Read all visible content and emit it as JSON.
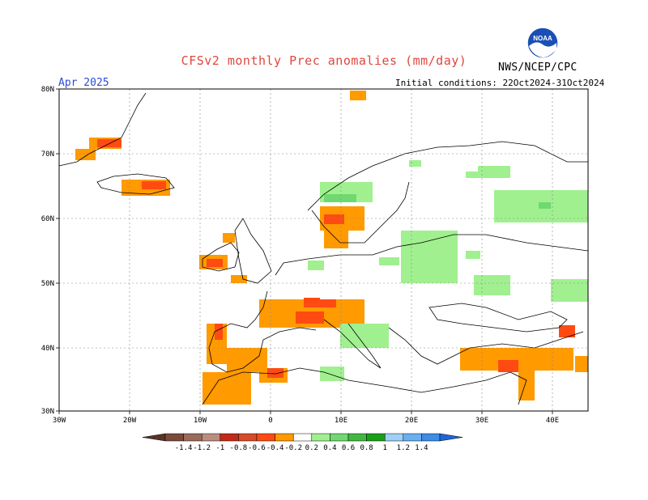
{
  "header": {
    "title": "CFSv2 monthly Prec anomalies (mm/day)",
    "month": "Apr 2025",
    "initial_conditions": "Initial conditions: 22Oct2024-31Oct2024",
    "agency": "NWS/NCEP/CPC",
    "logo_text": "NOAA"
  },
  "axes": {
    "lat_labels": [
      "80N",
      "70N",
      "60N",
      "50N",
      "40N",
      "30N"
    ],
    "lon_labels": [
      "30W",
      "20W",
      "10W",
      "0",
      "10E",
      "20E",
      "30E",
      "40E"
    ]
  },
  "colorbar": {
    "labels": [
      "-1.4",
      "-1.2",
      "-1",
      "-0.8",
      "-0.6",
      "-0.4",
      "-0.2",
      "0.2",
      "0.4",
      "0.6",
      "0.8",
      "1",
      "1.2",
      "1.4"
    ],
    "colors": [
      "#7b4a3a",
      "#9a6a5a",
      "#bb8d80",
      "#c42a18",
      "#d84a2a",
      "#ff4a12",
      "#ff9a00",
      "#ffffff",
      "#a0f090",
      "#70d870",
      "#40b840",
      "#18a018",
      "#a0d0f8",
      "#68b0f0",
      "#3c8ce8"
    ],
    "low_end_color": "#5a3326",
    "high_end_color": "#1f66d9"
  }
}
